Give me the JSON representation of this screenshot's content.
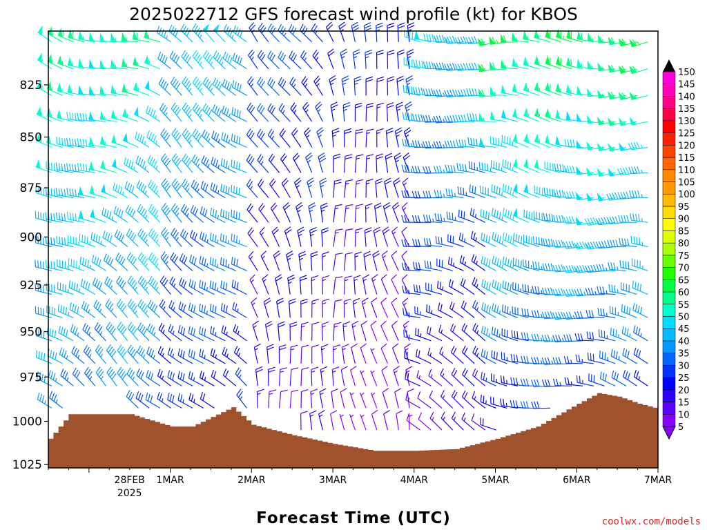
{
  "chart_data": {
    "type": "wind-barb-profile",
    "title": "2025022712 GFS forecast wind profile (kt) for KBOS",
    "xlabel": "Forecast Time (UTC)",
    "ylabel": "",
    "credit": "coolwx.com/models",
    "x_ticks": [
      {
        "label": "28FEB",
        "sublabel": "2025",
        "hour": 12
      },
      {
        "label": "1MAR",
        "sublabel": "",
        "hour": 24
      },
      {
        "label": "2MAR",
        "sublabel": "",
        "hour": 48
      },
      {
        "label": "3MAR",
        "sublabel": "",
        "hour": 72
      },
      {
        "label": "4MAR",
        "sublabel": "",
        "hour": 96
      },
      {
        "label": "5MAR",
        "sublabel": "",
        "hour": 120
      },
      {
        "label": "6MAR",
        "sublabel": "",
        "hour": 144
      },
      {
        "label": "7MAR",
        "sublabel": "",
        "hour": 168
      }
    ],
    "x_range_hours": [
      -12,
      168
    ],
    "y_range_hpa": [
      800,
      1027
    ],
    "y_ticks": [
      825,
      850,
      875,
      900,
      925,
      950,
      975,
      1000,
      1025
    ],
    "colorbar": {
      "labels": [
        5,
        10,
        15,
        20,
        25,
        30,
        35,
        40,
        45,
        50,
        55,
        60,
        65,
        70,
        75,
        80,
        85,
        90,
        95,
        100,
        105,
        110,
        115,
        120,
        125,
        130,
        135,
        140,
        145,
        150
      ],
      "colors": [
        "#8800ff",
        "#5a00ff",
        "#2a00ff",
        "#0000ff",
        "#0033ff",
        "#0066ff",
        "#0099ff",
        "#00bbff",
        "#00ddff",
        "#00ffcc",
        "#00ff88",
        "#00ff44",
        "#22ff00",
        "#66ff00",
        "#aaff00",
        "#ddff00",
        "#ffff00",
        "#ffdd00",
        "#ffbb00",
        "#ff9900",
        "#ff8800",
        "#ff6600",
        "#ff4400",
        "#ff2200",
        "#ff0000",
        "#ff0044",
        "#ff0088",
        "#ff00bb",
        "#ff00dd",
        "#ff00ff"
      ]
    },
    "surface_pressure": [
      {
        "h": -12,
        "p": 1010
      },
      {
        "h": -6,
        "p": 996
      },
      {
        "h": 12,
        "p": 996
      },
      {
        "h": 24,
        "p": 1003
      },
      {
        "h": 30,
        "p": 1003
      },
      {
        "h": 42,
        "p": 992
      },
      {
        "h": 48,
        "p": 1002
      },
      {
        "h": 60,
        "p": 1008
      },
      {
        "h": 72,
        "p": 1013
      },
      {
        "h": 84,
        "p": 1017
      },
      {
        "h": 96,
        "p": 1017
      },
      {
        "h": 108,
        "p": 1016
      },
      {
        "h": 120,
        "p": 1010
      },
      {
        "h": 132,
        "p": 1003
      },
      {
        "h": 144,
        "p": 990
      },
      {
        "h": 150,
        "p": 984
      },
      {
        "h": 156,
        "p": 986
      },
      {
        "h": 162,
        "p": 990
      },
      {
        "h": 168,
        "p": 993
      }
    ],
    "wind_profile_periods": [
      {
        "from_h": -12,
        "to_h": 24,
        "direction_deg": 290,
        "speed_kt_low": 30,
        "speed_kt_high": 55
      },
      {
        "from_h": 24,
        "to_h": 48,
        "direction_deg": 300,
        "speed_kt_low": 20,
        "speed_kt_high": 45
      },
      {
        "from_h": 48,
        "to_h": 72,
        "direction_deg": 330,
        "speed_kt_low": 10,
        "speed_kt_high": 30
      },
      {
        "from_h": 72,
        "to_h": 96,
        "direction_deg": 340,
        "speed_kt_low": 5,
        "speed_kt_high": 25
      },
      {
        "from_h": 96,
        "to_h": 120,
        "direction_deg": 280,
        "speed_kt_low": 10,
        "speed_kt_high": 45
      },
      {
        "from_h": 120,
        "to_h": 168,
        "direction_deg": 270,
        "speed_kt_low": 20,
        "speed_kt_high": 60
      }
    ]
  }
}
